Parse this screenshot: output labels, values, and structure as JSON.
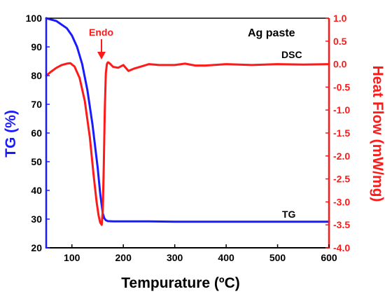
{
  "chart_data": {
    "type": "line",
    "title": "Ag paste",
    "xlabel": "Tempurature (ºC)",
    "ylabel_left": "TG (%)",
    "ylabel_right": "Heat Flow (mW/mg)",
    "xlim": [
      50,
      600
    ],
    "ylim_left": [
      20,
      100
    ],
    "ylim_right": [
      -4.0,
      1.0
    ],
    "x_ticks": [
      "100",
      "200",
      "300",
      "400",
      "500",
      "600"
    ],
    "y_ticks_left": [
      "20",
      "30",
      "40",
      "50",
      "60",
      "70",
      "80",
      "90",
      "100"
    ],
    "y_ticks_right": [
      "-4.0",
      "-3.5",
      "-3.0",
      "-2.5",
      "-2.0",
      "-1.5",
      "-1.0",
      "-0.5",
      "0.0",
      "0.5",
      "1.0"
    ],
    "grid": false,
    "series": [
      {
        "name": "TG",
        "axis": "left",
        "color": "#1a1aff",
        "x": [
          50,
          70,
          90,
          100,
          110,
          120,
          130,
          140,
          150,
          155,
          160,
          163,
          166,
          170,
          180,
          200,
          250,
          300,
          350,
          400,
          450,
          500,
          550,
          600
        ],
        "y": [
          100,
          99,
          96.5,
          94,
          90,
          84,
          75,
          63,
          48,
          39,
          32,
          30.3,
          29.6,
          29.3,
          29.2,
          29.2,
          29.2,
          29.1,
          29.1,
          29.1,
          29.1,
          29.1,
          29.1,
          29.1
        ]
      },
      {
        "name": "DSC",
        "axis": "right",
        "color": "#ff1a1a",
        "x": [
          50,
          60,
          70,
          80,
          90,
          97,
          105,
          115,
          125,
          135,
          142,
          148,
          152,
          155,
          158,
          160,
          162,
          164,
          166,
          168,
          170,
          172,
          175,
          180,
          190,
          200,
          210,
          220,
          235,
          250,
          270,
          300,
          320,
          340,
          360,
          400,
          450,
          500,
          550,
          600
        ],
        "y": [
          -0.25,
          -0.16,
          -0.08,
          -0.02,
          0.01,
          0.02,
          -0.05,
          -0.3,
          -0.8,
          -1.6,
          -2.4,
          -3.0,
          -3.3,
          -3.45,
          -3.5,
          -3.2,
          -2.2,
          -1.0,
          -0.2,
          0.0,
          0.04,
          0.03,
          0.0,
          -0.06,
          -0.08,
          -0.02,
          -0.15,
          -0.1,
          -0.05,
          0.0,
          -0.02,
          -0.02,
          0.01,
          -0.03,
          -0.03,
          0.0,
          -0.02,
          0.0,
          -0.01,
          0.0
        ]
      }
    ],
    "annotations": {
      "endo": "Endo",
      "dsc": "DSC",
      "tg": "TG"
    },
    "colors": {
      "left_axis": "#1a1aff",
      "right_axis": "#ff1a1a",
      "frame": "#000000"
    }
  }
}
